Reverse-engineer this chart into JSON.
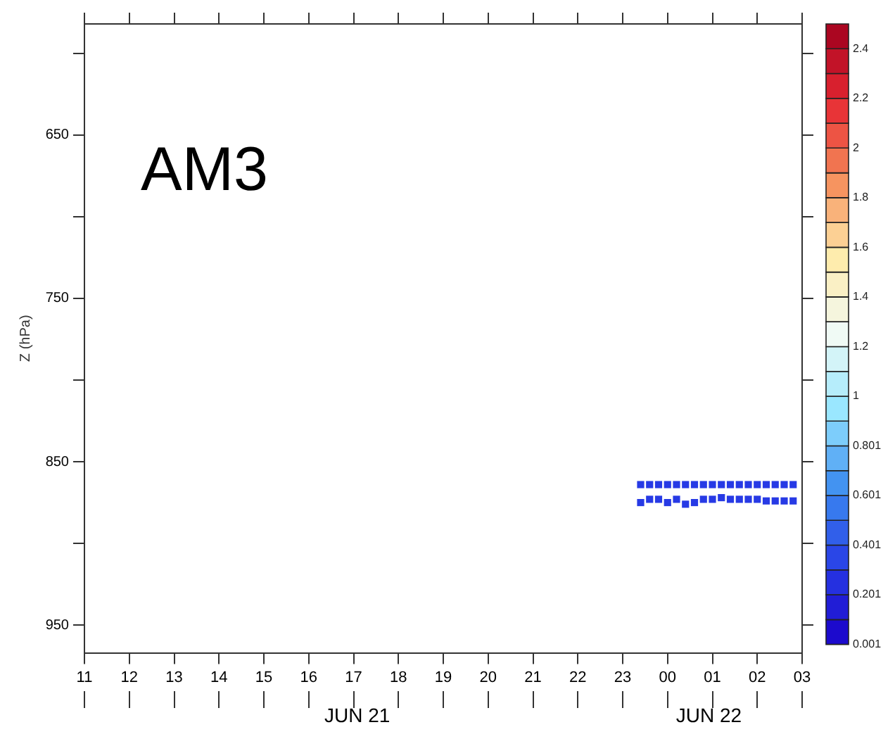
{
  "chart_data": {
    "type": "scatter",
    "title": "AM3",
    "ylabel": "Z (hPa)",
    "annotations": [
      "JUN 21",
      "JUN 22"
    ],
    "xlim": [
      "--06-21T11:00",
      "--06-22T03:00"
    ],
    "xticks": [
      {
        "value": "--06-21T11:00",
        "label": "11"
      },
      {
        "value": "--06-21T12:00",
        "label": "12"
      },
      {
        "value": "--06-21T13:00",
        "label": "13"
      },
      {
        "value": "--06-21T14:00",
        "label": "14"
      },
      {
        "value": "--06-21T15:00",
        "label": "15"
      },
      {
        "value": "--06-21T16:00",
        "label": "16"
      },
      {
        "value": "--06-21T17:00",
        "label": "17"
      },
      {
        "value": "--06-21T18:00",
        "label": "18"
      },
      {
        "value": "--06-21T19:00",
        "label": "19"
      },
      {
        "value": "--06-21T20:00",
        "label": "20"
      },
      {
        "value": "--06-21T21:00",
        "label": "21"
      },
      {
        "value": "--06-21T22:00",
        "label": "22"
      },
      {
        "value": "--06-21T23:00",
        "label": "23"
      },
      {
        "value": "--06-22T00:00",
        "label": "00"
      },
      {
        "value": "--06-22T01:00",
        "label": "01"
      },
      {
        "value": "--06-22T02:00",
        "label": "02"
      },
      {
        "value": "--06-22T03:00",
        "label": "03"
      }
    ],
    "ylim": [
      967,
      582
    ],
    "yticks": [
      {
        "value": 600,
        "label": null
      },
      650,
      {
        "value": 700,
        "label": null
      },
      750,
      {
        "value": 800,
        "label": null
      },
      850,
      {
        "value": 900,
        "label": null
      },
      950
    ],
    "clim": [
      0,
      2.5
    ],
    "cticks": [
      0.001,
      0.201,
      0.401,
      0.601,
      0.801,
      1,
      1.2,
      1.4,
      1.6,
      1.8,
      2,
      2.2,
      2.4
    ],
    "marker": "square",
    "grid": false,
    "legend": false,
    "x": [
      "--06-21T23:24",
      "--06-21T23:36",
      "--06-21T23:48",
      "--06-22T00:00",
      "--06-22T00:12",
      "--06-22T00:24",
      "--06-22T00:36",
      "--06-22T00:48",
      "--06-22T01:00",
      "--06-22T01:12",
      "--06-22T01:24",
      "--06-22T01:36",
      "--06-22T01:48",
      "--06-22T02:00",
      "--06-22T02:12",
      "--06-22T02:24",
      "--06-22T02:36",
      "--06-22T02:48",
      "--06-21T23:24",
      "--06-21T23:36",
      "--06-21T23:48",
      "--06-22T00:00",
      "--06-22T00:12",
      "--06-22T00:24",
      "--06-22T00:36",
      "--06-22T00:48",
      "--06-22T01:00",
      "--06-22T01:12",
      "--06-22T01:24",
      "--06-22T01:36",
      "--06-22T01:48",
      "--06-22T02:00",
      "--06-22T02:12",
      "--06-22T02:24",
      "--06-22T02:36",
      "--06-22T02:48"
    ],
    "values": [
      864,
      864,
      864,
      864,
      864,
      864,
      864,
      864,
      864,
      864,
      864,
      864,
      864,
      864,
      864,
      864,
      864,
      864,
      875,
      873,
      873,
      875,
      873,
      876,
      875,
      873,
      873,
      872,
      873,
      873,
      873,
      873,
      874,
      874,
      874,
      874
    ],
    "cvalues": [
      0.3,
      0.3,
      0.3,
      0.3,
      0.3,
      0.3,
      0.3,
      0.3,
      0.3,
      0.3,
      0.3,
      0.3,
      0.3,
      0.3,
      0.3,
      0.3,
      0.3,
      0.3,
      0.3,
      0.3,
      0.3,
      0.3,
      0.3,
      0.3,
      0.3,
      0.3,
      0.3,
      0.3,
      0.3,
      0.3,
      0.3,
      0.3,
      0.3,
      0.3,
      0.3,
      0.3
    ]
  }
}
